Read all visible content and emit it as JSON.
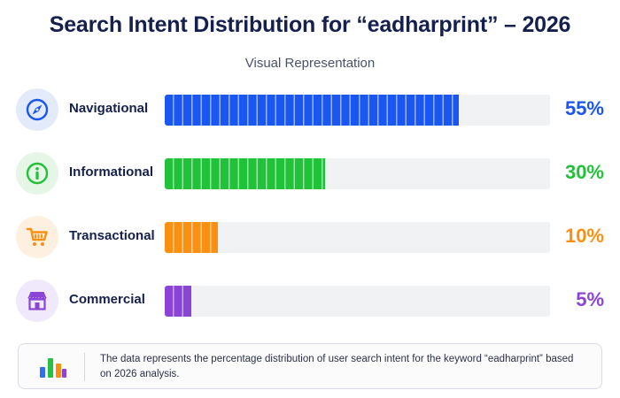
{
  "chart_data": {
    "type": "bar",
    "orientation": "horizontal",
    "title": "Search Intent Distribution for “eadharprint” – 2026",
    "subtitle": "Visual Representation",
    "categories": [
      "Navigational",
      "Informational",
      "Transactional",
      "Commercial"
    ],
    "values": [
      55,
      30,
      10,
      5
    ],
    "value_labels": [
      "55%",
      "30%",
      "10%",
      "5%"
    ],
    "xlim": [
      0,
      72
    ],
    "unit": "%",
    "colors": [
      "#1a56f0",
      "#22c13a",
      "#f99012",
      "#8b45d6"
    ],
    "icon_backgrounds": [
      "#e3ebfb",
      "#e5f6e7",
      "#fdf0e0",
      "#f0e8fb"
    ],
    "icons": [
      "compass-icon",
      "info-icon",
      "cart-icon",
      "store-icon"
    ],
    "grid": false,
    "legend": "none"
  },
  "footer": {
    "icon": "bar-chart-icon",
    "text": "The data represents the percentage distribution of user search intent for the keyword “eadharprint” based on 2026 analysis."
  }
}
